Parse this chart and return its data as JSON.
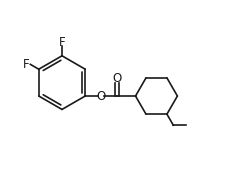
{
  "background_color": "#ffffff",
  "line_color": "#1a1a1a",
  "line_width": 1.2,
  "font_size_atom": 8.5,
  "fig_width": 2.44,
  "fig_height": 1.78,
  "dpi": 100,
  "xlim": [
    0.0,
    9.5
  ],
  "ylim": [
    1.0,
    7.5
  ]
}
